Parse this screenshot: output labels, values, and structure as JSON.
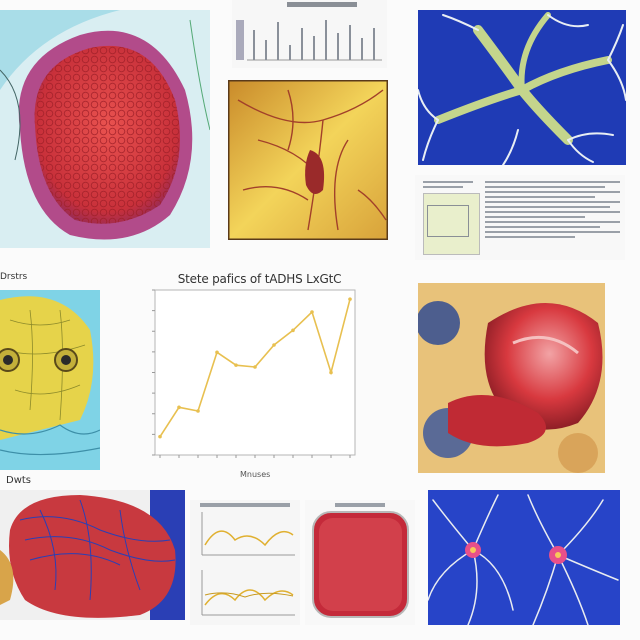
{
  "collage": {
    "main_chart": {
      "title": "Stete pafics of tADHS LxGtC",
      "xlabel": "Mnuses"
    },
    "left_mid_caption": "Drstrs",
    "bottom_left_caption": "Dwts"
  },
  "colors": {
    "organ_red": "#d8393f",
    "vessel_blue": "#1f3fb0",
    "parchment": "#e6b63c",
    "chart_line": "#e8c050",
    "cyan_bg": "#7fd3e6"
  },
  "chart_data": {
    "type": "line",
    "title": "Stete pafics of tADHS LxGtC",
    "xlabel": "Mnuses",
    "ylabel": "",
    "x": [
      1,
      2,
      3,
      4,
      5,
      6,
      7,
      8,
      9,
      10,
      11
    ],
    "series": [
      {
        "values": [
          1.0,
          2.6,
          2.4,
          5.6,
          4.9,
          4.8,
          6.0,
          6.8,
          7.8,
          4.5,
          8.5
        ]
      }
    ],
    "ylim": [
      0,
      9
    ],
    "grid": false
  }
}
